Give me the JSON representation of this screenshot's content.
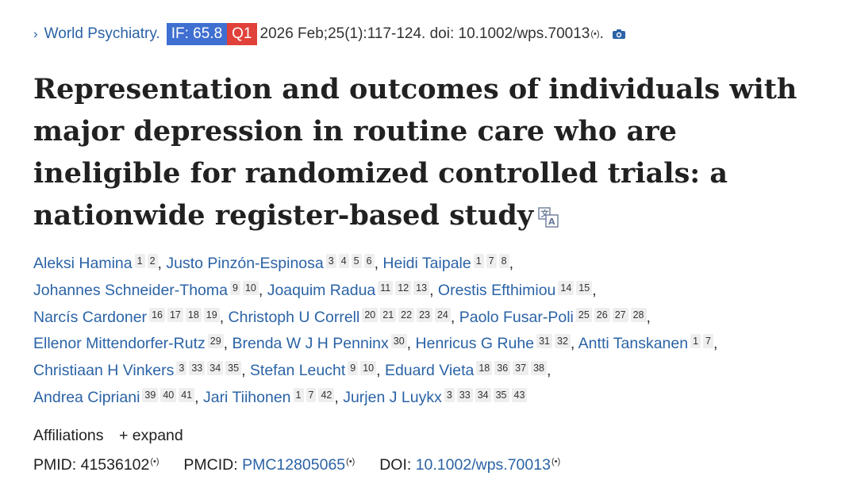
{
  "journal": {
    "chevron": "›",
    "name": "World Psychiatry.",
    "if_badge": "IF: 65.8",
    "quartile": "Q1",
    "citation": "2026 Feb;25(1):117-124. doi: 10.1002/wps.70013",
    "signal": "(•)",
    "trailing": ".",
    "camera_icon": "camera-icon",
    "if_color": "#3f6fd0",
    "quartile_color": "#e0413a"
  },
  "title": "Representation and outcomes of individuals with major depression in routine care who are ineligible for randomized controlled trials: a nationwide register-based study",
  "translate_icon": "translate-icon",
  "authors": [
    {
      "name": "Aleksi Hamina",
      "affs": [
        "1",
        "2"
      ]
    },
    {
      "name": "Justo Pinzón-Espinosa",
      "affs": [
        "3",
        "4",
        "5",
        "6"
      ]
    },
    {
      "name": "Heidi Taipale",
      "affs": [
        "1",
        "7",
        "8"
      ]
    },
    {
      "name": "Johannes Schneider-Thoma",
      "affs": [
        "9",
        "10"
      ]
    },
    {
      "name": "Joaquim Radua",
      "affs": [
        "11",
        "12",
        "13"
      ]
    },
    {
      "name": "Orestis Efthimiou",
      "affs": [
        "14",
        "15"
      ]
    },
    {
      "name": "Narcís Cardoner",
      "affs": [
        "16",
        "17",
        "18",
        "19"
      ]
    },
    {
      "name": "Christoph U Correll",
      "affs": [
        "20",
        "21",
        "22",
        "23",
        "24"
      ]
    },
    {
      "name": "Paolo Fusar-Poli",
      "affs": [
        "25",
        "26",
        "27",
        "28"
      ]
    },
    {
      "name": "Ellenor Mittendorfer-Rutz",
      "affs": [
        "29"
      ]
    },
    {
      "name": "Brenda W J H Penninx",
      "affs": [
        "30"
      ]
    },
    {
      "name": "Henricus G Ruhe",
      "affs": [
        "31",
        "32"
      ]
    },
    {
      "name": "Antti Tanskanen",
      "affs": [
        "1",
        "7"
      ]
    },
    {
      "name": "Christiaan H Vinkers",
      "affs": [
        "3",
        "33",
        "34",
        "35"
      ]
    },
    {
      "name": "Stefan Leucht",
      "affs": [
        "9",
        "10"
      ]
    },
    {
      "name": "Eduard Vieta",
      "affs": [
        "18",
        "36",
        "37",
        "38"
      ]
    },
    {
      "name": "Andrea Cipriani",
      "affs": [
        "39",
        "40",
        "41"
      ]
    },
    {
      "name": "Jari Tiihonen",
      "affs": [
        "1",
        "7",
        "42"
      ]
    },
    {
      "name": "Jurjen J Luykx",
      "affs": [
        "3",
        "33",
        "34",
        "35",
        "43"
      ]
    }
  ],
  "line_breaks_after": [
    2,
    5,
    8,
    12,
    15
  ],
  "affiliations": {
    "label": "Affiliations",
    "expand": "+ expand"
  },
  "ids": {
    "pmid_label": "PMID:",
    "pmid": "41536102",
    "pmcid_label": "PMCID:",
    "pmcid": "PMC12805065",
    "doi_label": "DOI:",
    "doi": "10.1002/wps.70013",
    "signal": "(•)"
  }
}
